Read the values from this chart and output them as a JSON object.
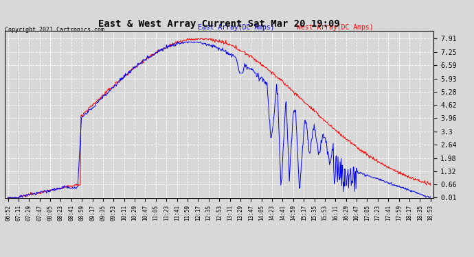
{
  "title": "East & West Array Current Sat Mar 20 19:09",
  "copyright": "Copyright 2021 Cartronics.com",
  "east_label": "East Array(DC Amps)",
  "west_label": "West Array(DC Amps)",
  "east_color": "blue",
  "west_color": "red",
  "background_color": "#d8d8d8",
  "yticks": [
    0.01,
    0.66,
    1.32,
    1.98,
    2.64,
    3.3,
    3.96,
    4.62,
    5.28,
    5.93,
    6.59,
    7.25,
    7.91
  ],
  "ylim": [
    0.0,
    8.3
  ],
  "xtick_labels": [
    "06:52",
    "07:11",
    "07:29",
    "07:47",
    "08:05",
    "08:23",
    "08:41",
    "08:59",
    "09:17",
    "09:35",
    "09:53",
    "10:11",
    "10:29",
    "10:47",
    "11:05",
    "11:23",
    "11:41",
    "11:59",
    "12:17",
    "12:35",
    "12:53",
    "13:11",
    "13:29",
    "13:47",
    "14:05",
    "14:23",
    "14:41",
    "14:59",
    "15:17",
    "15:35",
    "15:53",
    "16:11",
    "16:29",
    "16:47",
    "17:05",
    "17:23",
    "17:41",
    "17:59",
    "18:17",
    "18:35",
    "18:53"
  ],
  "num_points": 800
}
